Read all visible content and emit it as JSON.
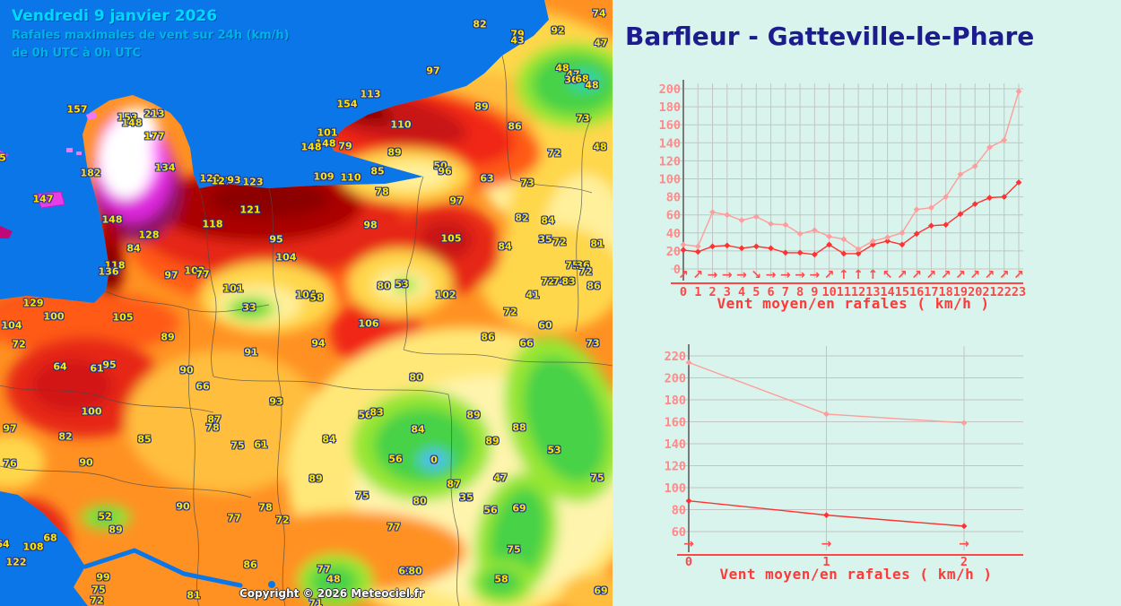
{
  "map": {
    "header": {
      "date": "Vendredi 9 janvier 2026",
      "subtitle1": "Rafales maximales de vent sur 24h (km/h)",
      "subtitle2": "de 0h UTC à 0h UTC"
    },
    "copyright": "Copyright © 2026 Meteociel.fr",
    "unit": "km/h",
    "labels": [
      [
        82,
        535,
        27
      ],
      [
        79,
        577,
        38
      ],
      [
        43,
        577,
        45
      ],
      [
        92,
        622,
        34
      ],
      [
        74,
        668,
        15
      ],
      [
        47,
        670,
        48
      ],
      [
        48,
        627,
        76
      ],
      [
        47,
        639,
        83
      ],
      [
        36,
        637,
        89
      ],
      [
        68,
        649,
        88
      ],
      [
        48,
        660,
        95
      ],
      [
        97,
        483,
        79
      ],
      [
        113,
        413,
        105
      ],
      [
        154,
        387,
        116
      ],
      [
        110,
        447,
        139
      ],
      [
        101,
        365,
        148
      ],
      [
        148,
        363,
        160
      ],
      [
        148,
        347,
        164
      ],
      [
        79,
        385,
        163
      ],
      [
        89,
        440,
        170
      ],
      [
        109,
        361,
        197
      ],
      [
        110,
        391,
        198
      ],
      [
        85,
        421,
        191
      ],
      [
        50,
        491,
        185
      ],
      [
        96,
        496,
        191
      ],
      [
        78,
        426,
        214
      ],
      [
        89,
        537,
        119
      ],
      [
        86,
        574,
        141
      ],
      [
        73,
        650,
        132
      ],
      [
        72,
        618,
        171
      ],
      [
        48,
        669,
        164
      ],
      [
        63,
        543,
        199
      ],
      [
        73,
        588,
        204
      ],
      [
        97,
        509,
        224
      ],
      [
        82,
        582,
        243
      ],
      [
        84,
        611,
        246
      ],
      [
        157,
        86,
        122
      ],
      [
        153,
        142,
        131
      ],
      [
        148,
        147,
        137
      ],
      [
        213,
        172,
        127
      ],
      [
        177,
        172,
        152
      ],
      [
        134,
        184,
        187
      ],
      [
        182,
        101,
        193
      ],
      [
        147,
        48,
        222
      ],
      [
        5,
        3,
        176
      ],
      [
        120,
        234,
        199
      ],
      [
        127,
        247,
        202
      ],
      [
        93,
        261,
        201
      ],
      [
        123,
        282,
        203
      ],
      [
        121,
        279,
        234
      ],
      [
        118,
        237,
        250
      ],
      [
        95,
        308,
        267
      ],
      [
        104,
        319,
        287
      ],
      [
        148,
        125,
        245
      ],
      [
        128,
        166,
        262
      ],
      [
        84,
        149,
        277
      ],
      [
        118,
        128,
        296
      ],
      [
        136,
        121,
        303
      ],
      [
        97,
        191,
        307
      ],
      [
        102,
        217,
        302
      ],
      [
        77,
        226,
        306
      ],
      [
        101,
        260,
        322
      ],
      [
        33,
        278,
        343
      ],
      [
        104,
        341,
        329
      ],
      [
        58,
        353,
        332
      ],
      [
        129,
        37,
        338
      ],
      [
        100,
        60,
        353
      ],
      [
        104,
        13,
        363
      ],
      [
        105,
        137,
        354
      ],
      [
        89,
        187,
        376
      ],
      [
        98,
        413,
        251
      ],
      [
        105,
        503,
        266
      ],
      [
        35,
        608,
        267
      ],
      [
        72,
        624,
        270
      ],
      [
        81,
        666,
        272
      ],
      [
        84,
        563,
        275
      ],
      [
        75,
        638,
        296
      ],
      [
        36,
        650,
        296
      ],
      [
        72,
        653,
        303
      ],
      [
        72,
        611,
        314
      ],
      [
        74,
        624,
        314
      ],
      [
        83,
        634,
        314
      ],
      [
        86,
        662,
        319
      ],
      [
        41,
        594,
        329
      ],
      [
        80,
        428,
        319
      ],
      [
        53,
        448,
        317
      ],
      [
        102,
        497,
        329
      ],
      [
        106,
        411,
        361
      ],
      [
        72,
        569,
        348
      ],
      [
        60,
        608,
        363
      ],
      [
        86,
        544,
        376
      ],
      [
        72,
        21,
        384
      ],
      [
        64,
        67,
        409
      ],
      [
        61,
        108,
        411
      ],
      [
        95,
        122,
        407
      ],
      [
        100,
        102,
        459
      ],
      [
        97,
        11,
        478
      ],
      [
        82,
        73,
        487
      ],
      [
        76,
        11,
        517
      ],
      [
        90,
        96,
        516
      ],
      [
        85,
        161,
        490
      ],
      [
        90,
        208,
        413
      ],
      [
        66,
        226,
        431
      ],
      [
        91,
        280,
        393
      ],
      [
        93,
        308,
        448
      ],
      [
        87,
        239,
        468
      ],
      [
        78,
        237,
        477
      ],
      [
        75,
        265,
        497
      ],
      [
        61,
        291,
        496
      ],
      [
        90,
        204,
        565
      ],
      [
        78,
        296,
        566
      ],
      [
        77,
        261,
        578
      ],
      [
        72,
        315,
        580
      ],
      [
        52,
        117,
        576
      ],
      [
        89,
        129,
        591
      ],
      [
        68,
        56,
        600
      ],
      [
        108,
        37,
        610
      ],
      [
        122,
        18,
        627
      ],
      [
        64,
        3,
        607
      ],
      [
        99,
        115,
        644
      ],
      [
        75,
        110,
        658
      ],
      [
        72,
        108,
        670
      ],
      [
        86,
        279,
        630
      ],
      [
        81,
        216,
        664
      ],
      [
        94,
        355,
        383
      ],
      [
        66,
        587,
        383
      ],
      [
        73,
        661,
        383
      ],
      [
        80,
        464,
        421
      ],
      [
        56,
        407,
        463
      ],
      [
        83,
        420,
        460
      ],
      [
        84,
        367,
        490
      ],
      [
        84,
        466,
        479
      ],
      [
        89,
        528,
        463
      ],
      [
        88,
        579,
        477
      ],
      [
        89,
        549,
        492
      ],
      [
        53,
        618,
        502
      ],
      [
        56,
        441,
        512
      ],
      [
        0,
        484,
        513
      ],
      [
        89,
        352,
        534
      ],
      [
        87,
        506,
        540
      ],
      [
        47,
        558,
        533
      ],
      [
        75,
        666,
        533
      ],
      [
        75,
        404,
        553
      ],
      [
        80,
        468,
        559
      ],
      [
        35,
        520,
        555
      ],
      [
        56,
        547,
        569
      ],
      [
        69,
        579,
        567
      ],
      [
        77,
        439,
        588
      ],
      [
        75,
        573,
        613
      ],
      [
        77,
        361,
        635
      ],
      [
        48,
        372,
        646
      ],
      [
        61,
        452,
        637
      ],
      [
        80,
        463,
        637
      ],
      [
        58,
        559,
        646
      ],
      [
        69,
        670,
        659
      ],
      [
        71,
        352,
        673
      ]
    ]
  },
  "panel": {
    "title": "Barfleur - Gatteville-le-Phare"
  },
  "chart_data": [
    {
      "type": "line",
      "title": "",
      "xlabel": "Vent moyen/en rafales ( km/h )",
      "ylabel": "",
      "x": [
        0,
        1,
        2,
        3,
        4,
        5,
        6,
        7,
        8,
        9,
        10,
        11,
        12,
        13,
        14,
        15,
        16,
        17,
        18,
        19,
        20,
        21,
        22,
        23
      ],
      "series": [
        {
          "name": "rafales",
          "color": "#ff9c9c",
          "values": [
            27,
            25,
            63,
            60,
            54,
            58,
            50,
            49,
            39,
            43,
            36,
            33,
            22,
            31,
            35,
            40,
            66,
            68,
            80,
            105,
            114,
            135,
            143,
            197
          ]
        },
        {
          "name": "vent moyen",
          "color": "#ff3232",
          "values": [
            21,
            19,
            25,
            26,
            23,
            25,
            23,
            18,
            18,
            16,
            27,
            17,
            17,
            27,
            31,
            27,
            39,
            48,
            49,
            61,
            72,
            79,
            80,
            96
          ]
        }
      ],
      "wind_arrows": [
        "↗",
        "↗",
        "→",
        "→",
        "→",
        "↘",
        "→",
        "→",
        "→",
        "→",
        "↗",
        "↑",
        "↑",
        "↑",
        "↖",
        "↗",
        "↗",
        "↗",
        "↗",
        "↗",
        "↗",
        "↗",
        "↗",
        "↗"
      ],
      "ylim": [
        0,
        200
      ],
      "yticks": [
        0,
        20,
        40,
        60,
        80,
        100,
        120,
        140,
        160,
        180,
        200
      ],
      "grid": true,
      "legend": "none",
      "tick_color": "#ff8a8a",
      "axis_color": "#ff4646"
    },
    {
      "type": "line",
      "title": "",
      "xlabel": "Vent moyen/en rafales ( km/h )",
      "ylabel": "",
      "x": [
        0,
        1,
        2
      ],
      "series": [
        {
          "name": "rafales",
          "color": "#ff9c9c",
          "values": [
            214,
            167,
            159
          ]
        },
        {
          "name": "vent moyen",
          "color": "#ff3232",
          "values": [
            88,
            75,
            65
          ]
        }
      ],
      "wind_arrows": [
        "→",
        "→",
        "→"
      ],
      "ylim": [
        50,
        230
      ],
      "yticks": [
        60,
        80,
        100,
        120,
        140,
        160,
        180,
        200,
        220
      ],
      "grid": true,
      "legend": "none",
      "tick_color": "#ff8a8a",
      "axis_color": "#ff4646"
    }
  ]
}
